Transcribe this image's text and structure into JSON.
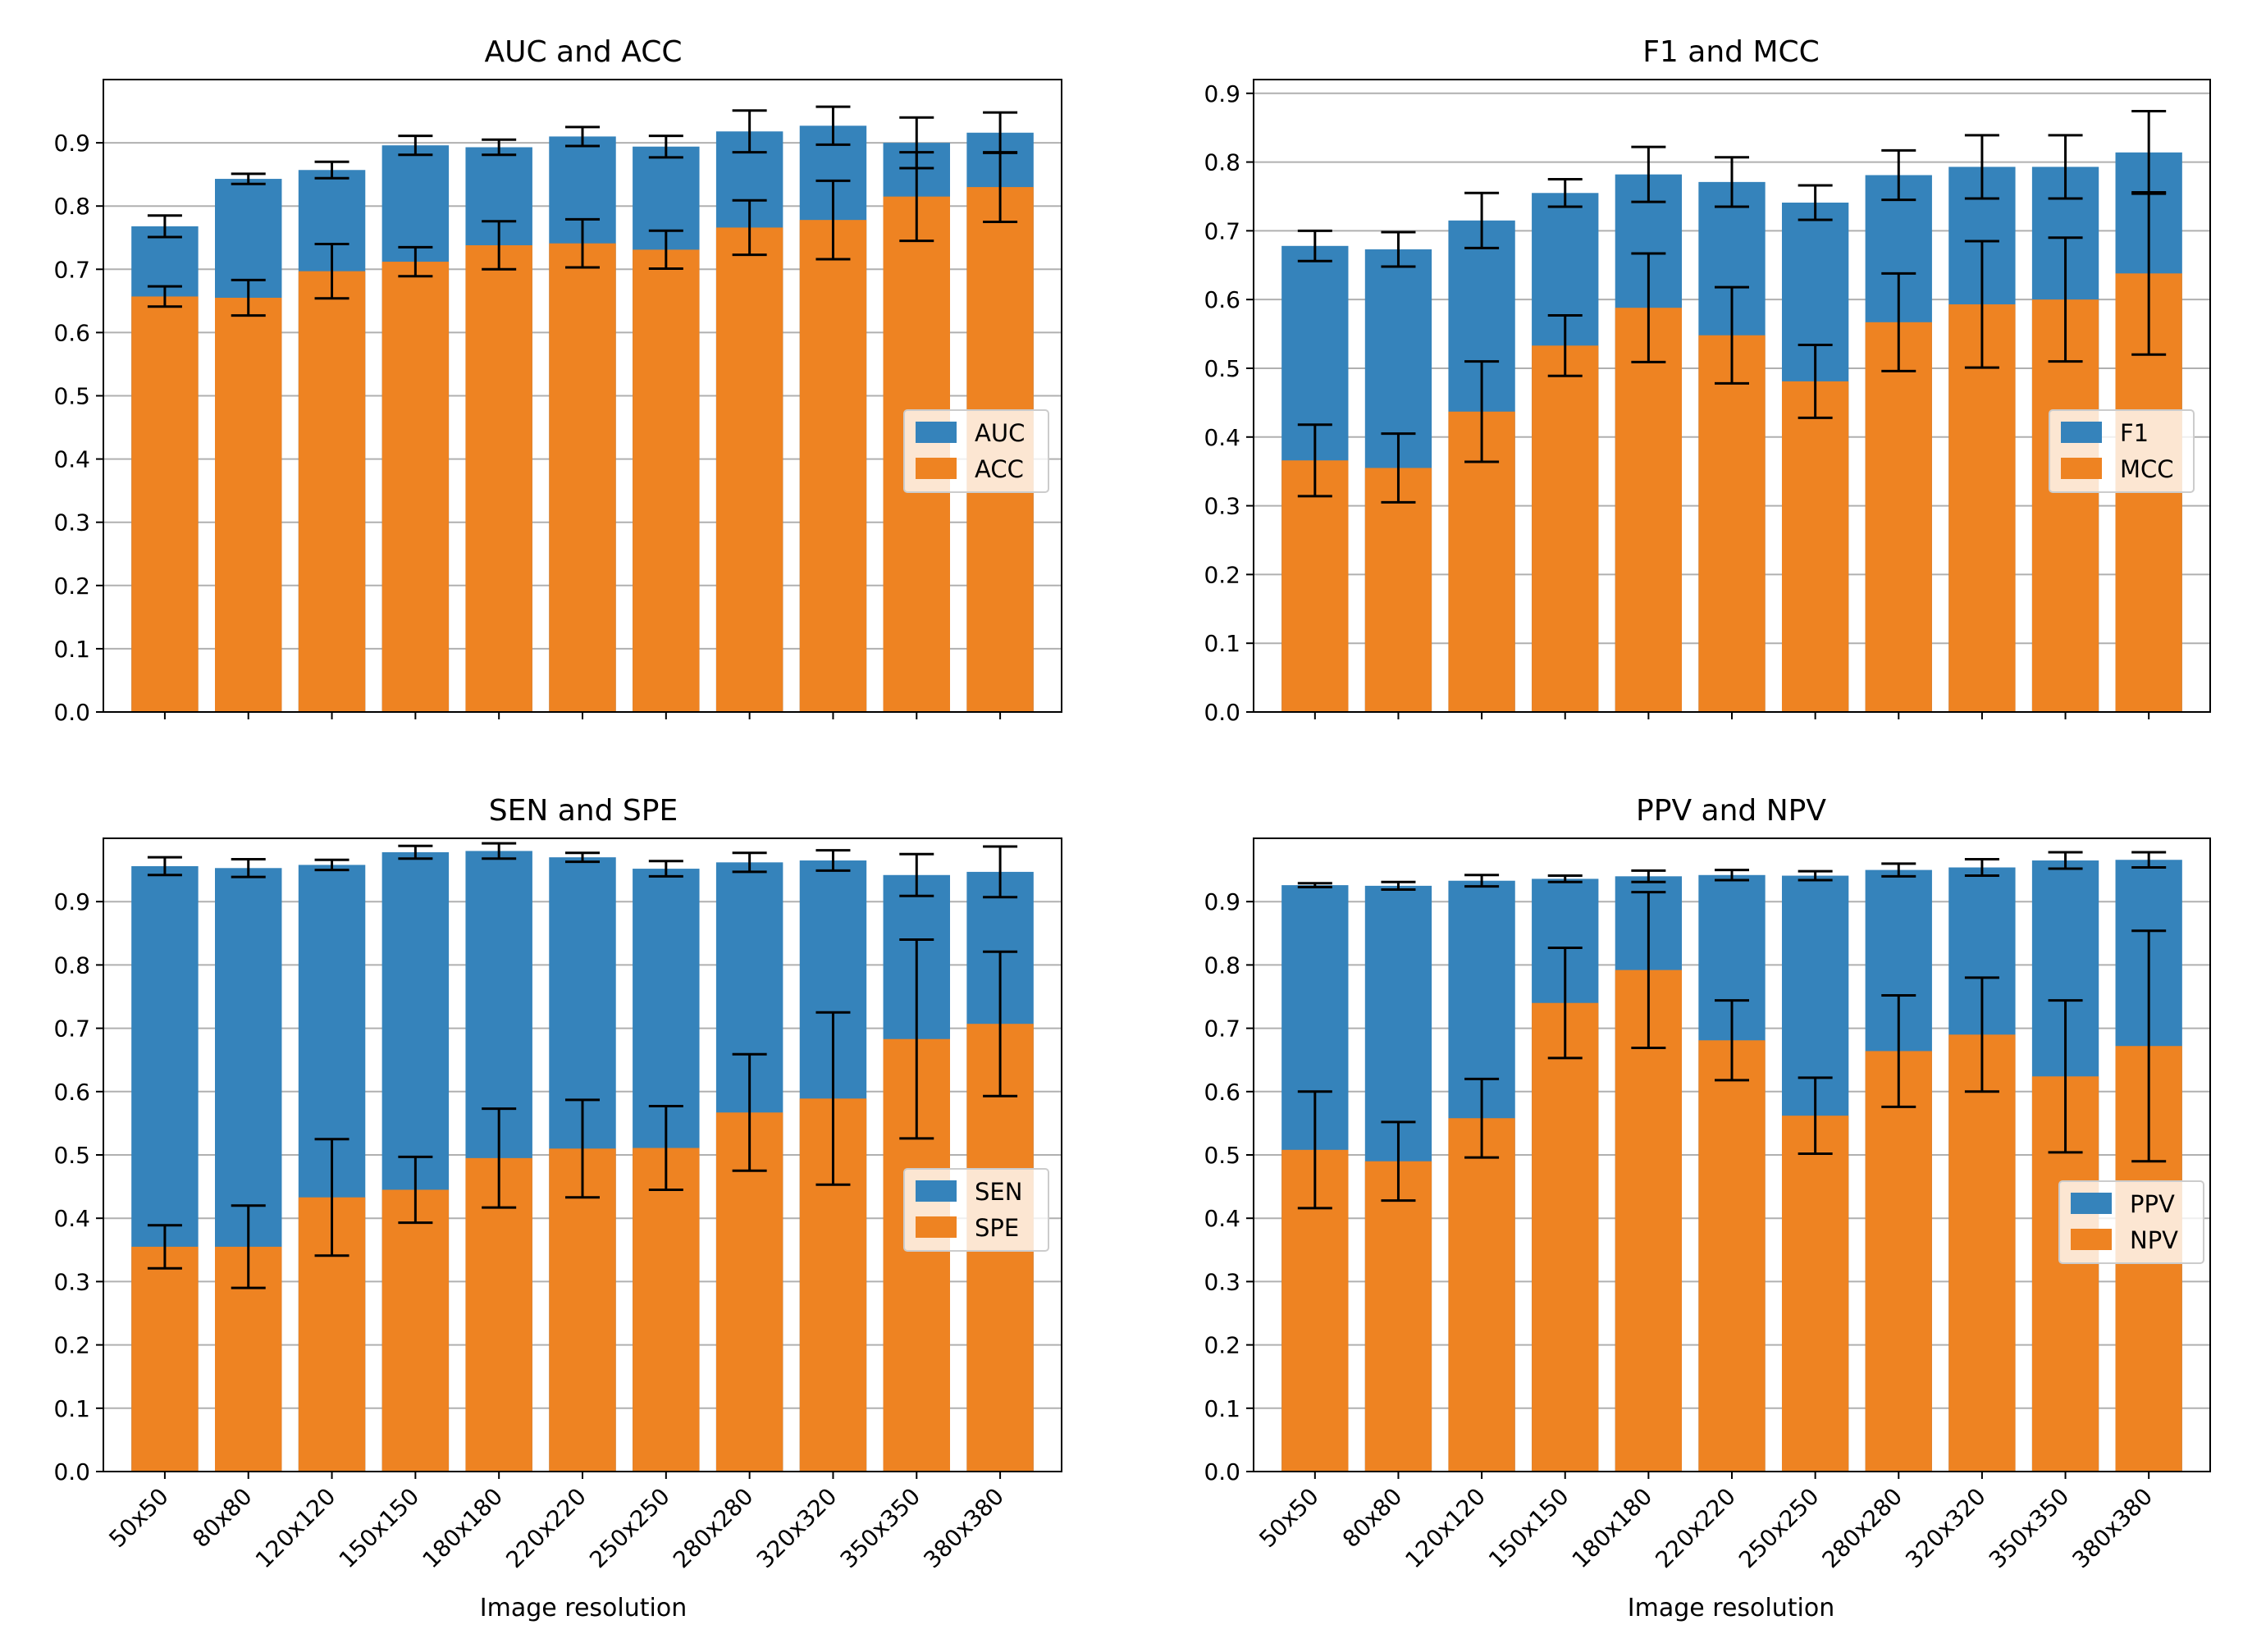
{
  "figure": {
    "colors": {
      "blue": "#1f77b4",
      "orange": "#ff7f0e",
      "grid": "#b0b0b0",
      "axis": "#000000"
    },
    "xlabel": "Image resolution"
  },
  "chart_data": [
    {
      "type": "bar",
      "title": "AUC and ACC",
      "xlabel": "",
      "ylabel": "",
      "ylim": [
        0,
        1.0
      ],
      "yticks": [
        "0.0",
        "0.1",
        "0.2",
        "0.3",
        "0.4",
        "0.5",
        "0.6",
        "0.7",
        "0.8",
        "0.9"
      ],
      "grid": "y",
      "legend_position": "right",
      "categories": [
        "50x50",
        "80x80",
        "120x120",
        "150x150",
        "180x180",
        "220x220",
        "250x250",
        "280x280",
        "320x320",
        "350x350",
        "380x380"
      ],
      "series": [
        {
          "name": "AUC",
          "color": "#1f77b4",
          "values": [
            0.768,
            0.843,
            0.857,
            0.896,
            0.893,
            0.91,
            0.894,
            0.918,
            0.927,
            0.9,
            0.916
          ],
          "err": [
            0.017,
            0.008,
            0.013,
            0.015,
            0.012,
            0.015,
            0.017,
            0.033,
            0.03,
            0.04,
            0.032
          ]
        },
        {
          "name": "ACC",
          "color": "#ff7f0e",
          "values": [
            0.657,
            0.655,
            0.697,
            0.712,
            0.738,
            0.741,
            0.731,
            0.766,
            0.778,
            0.815,
            0.83
          ],
          "err": [
            0.016,
            0.028,
            0.043,
            0.023,
            0.038,
            0.038,
            0.03,
            0.043,
            0.062,
            0.07,
            0.055
          ]
        }
      ]
    },
    {
      "type": "bar",
      "title": "F1 and MCC",
      "xlabel": "",
      "ylabel": "",
      "ylim": [
        0,
        0.92
      ],
      "yticks": [
        "0.0",
        "0.1",
        "0.2",
        "0.3",
        "0.4",
        "0.5",
        "0.6",
        "0.7",
        "0.8",
        "0.9"
      ],
      "grid": "y",
      "legend_position": "right",
      "categories": [
        "50x50",
        "80x80",
        "120x120",
        "150x150",
        "180x180",
        "220x220",
        "250x250",
        "280x280",
        "320x320",
        "350x350",
        "380x380"
      ],
      "series": [
        {
          "name": "F1",
          "color": "#1f77b4",
          "values": [
            0.678,
            0.673,
            0.715,
            0.755,
            0.782,
            0.771,
            0.741,
            0.781,
            0.793,
            0.793,
            0.814
          ],
          "err": [
            0.022,
            0.025,
            0.04,
            0.02,
            0.04,
            0.036,
            0.025,
            0.036,
            0.046,
            0.046,
            0.06
          ]
        },
        {
          "name": "MCC",
          "color": "#ff7f0e",
          "values": [
            0.366,
            0.355,
            0.437,
            0.533,
            0.588,
            0.548,
            0.481,
            0.567,
            0.593,
            0.6,
            0.638
          ],
          "err": [
            0.052,
            0.05,
            0.073,
            0.044,
            0.079,
            0.07,
            0.053,
            0.071,
            0.092,
            0.09,
            0.118
          ]
        }
      ]
    },
    {
      "type": "bar",
      "title": "SEN and SPE",
      "xlabel": "Image resolution",
      "ylabel": "",
      "ylim": [
        0,
        1.0
      ],
      "yticks": [
        "0.0",
        "0.1",
        "0.2",
        "0.3",
        "0.4",
        "0.5",
        "0.6",
        "0.7",
        "0.8",
        "0.9"
      ],
      "grid": "y",
      "legend_position": "right",
      "categories": [
        "50x50",
        "80x80",
        "120x120",
        "150x150",
        "180x180",
        "220x220",
        "250x250",
        "280x280",
        "320x320",
        "350x350",
        "380x380"
      ],
      "series": [
        {
          "name": "SEN",
          "color": "#1f77b4",
          "values": [
            0.956,
            0.953,
            0.958,
            0.978,
            0.98,
            0.97,
            0.952,
            0.962,
            0.965,
            0.942,
            0.947
          ],
          "err": [
            0.014,
            0.014,
            0.008,
            0.01,
            0.012,
            0.007,
            0.012,
            0.015,
            0.016,
            0.033,
            0.04
          ]
        },
        {
          "name": "SPE",
          "color": "#ff7f0e",
          "values": [
            0.355,
            0.355,
            0.433,
            0.445,
            0.495,
            0.51,
            0.511,
            0.567,
            0.589,
            0.683,
            0.707
          ],
          "err": [
            0.034,
            0.065,
            0.092,
            0.052,
            0.078,
            0.077,
            0.066,
            0.092,
            0.136,
            0.157,
            0.114
          ]
        }
      ]
    },
    {
      "type": "bar",
      "title": "PPV and NPV",
      "xlabel": "Image resolution",
      "ylabel": "",
      "ylim": [
        0,
        1.0
      ],
      "yticks": [
        "0.0",
        "0.1",
        "0.2",
        "0.3",
        "0.4",
        "0.5",
        "0.6",
        "0.7",
        "0.8",
        "0.9"
      ],
      "grid": "y",
      "legend_position": "lower right",
      "categories": [
        "50x50",
        "80x80",
        "120x120",
        "150x150",
        "180x180",
        "220x220",
        "250x250",
        "280x280",
        "320x320",
        "350x350",
        "380x380"
      ],
      "series": [
        {
          "name": "PPV",
          "color": "#1f77b4",
          "values": [
            0.926,
            0.925,
            0.933,
            0.936,
            0.94,
            0.942,
            0.941,
            0.95,
            0.954,
            0.965,
            0.966
          ],
          "err": [
            0.003,
            0.006,
            0.009,
            0.005,
            0.009,
            0.008,
            0.007,
            0.01,
            0.013,
            0.013,
            0.012
          ]
        },
        {
          "name": "NPV",
          "color": "#ff7f0e",
          "values": [
            0.508,
            0.49,
            0.558,
            0.74,
            0.792,
            0.681,
            0.562,
            0.664,
            0.69,
            0.624,
            0.672
          ],
          "err": [
            0.092,
            0.062,
            0.062,
            0.087,
            0.123,
            0.063,
            0.06,
            0.088,
            0.09,
            0.12,
            0.182
          ]
        }
      ]
    }
  ]
}
